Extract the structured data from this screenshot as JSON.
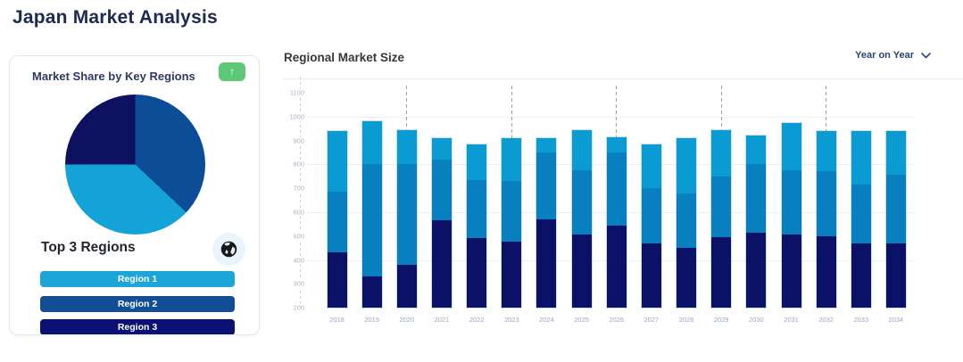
{
  "page": {
    "title": "Japan Market Analysis"
  },
  "share_card": {
    "title": "Market Share by Key Regions",
    "trend_button": {
      "icon": "arrow-up",
      "glyph": "↑",
      "color": "#5EC878"
    },
    "top_regions_title": "Top 3 Regions",
    "globe_icon": "globe-icon",
    "regions": [
      {
        "label": "Region 1",
        "color": "#1CA5D8"
      },
      {
        "label": "Region 2",
        "color": "#114E93"
      },
      {
        "label": "Region 3",
        "color": "#0A1172"
      }
    ]
  },
  "market_size_panel": {
    "title": "Regional Market Size",
    "period_selector": {
      "value": "Year on Year",
      "icon": "chevron-down"
    }
  },
  "chart_data": [
    {
      "type": "pie",
      "title": "Market Share by Key Regions",
      "start_angle_deg": 0,
      "direction": "clockwise",
      "slices": [
        {
          "label": "Region 2",
          "value": 37,
          "color": "#0B4E97"
        },
        {
          "label": "Region 1",
          "value": 38,
          "color": "#14A3D7"
        },
        {
          "label": "Region 3",
          "value": 25,
          "color": "#0D1160"
        }
      ]
    },
    {
      "type": "bar",
      "stacked": true,
      "title": "Regional Market Size",
      "categories": [
        "2018",
        "2019",
        "2020",
        "2021",
        "2022",
        "2023",
        "2024",
        "2025",
        "2026",
        "2027",
        "2028",
        "2029",
        "2030",
        "2031",
        "2032",
        "2033",
        "2034"
      ],
      "baseline": 200,
      "ylim": [
        200,
        1130
      ],
      "yticks": [
        200,
        300,
        400,
        500,
        600,
        700,
        800,
        900,
        1000,
        1100
      ],
      "gridlines": [
        400,
        600,
        800,
        1000
      ],
      "dashed_guide_categories": [
        "2020",
        "2023",
        "2026",
        "2029",
        "2032"
      ],
      "series": [
        {
          "name": "Region 3",
          "color": "#0C1168",
          "values": [
            230,
            130,
            180,
            365,
            290,
            275,
            370,
            305,
            345,
            270,
            250,
            295,
            315,
            305,
            300,
            270,
            270
          ]
        },
        {
          "name": "Region 2",
          "color": "#0880BF",
          "values": [
            255,
            470,
            420,
            255,
            245,
            255,
            280,
            270,
            305,
            230,
            230,
            255,
            285,
            270,
            270,
            245,
            285
          ]
        },
        {
          "name": "Region 1",
          "color": "#0A9BD2",
          "values": [
            255,
            180,
            145,
            90,
            150,
            180,
            60,
            170,
            65,
            185,
            230,
            195,
            120,
            200,
            170,
            225,
            185
          ]
        }
      ],
      "bar_totals": [
        940,
        980,
        945,
        910,
        885,
        910,
        910,
        945,
        915,
        885,
        910,
        945,
        920,
        975,
        940,
        940,
        940
      ],
      "legend_position": "none",
      "grid": true
    }
  ]
}
